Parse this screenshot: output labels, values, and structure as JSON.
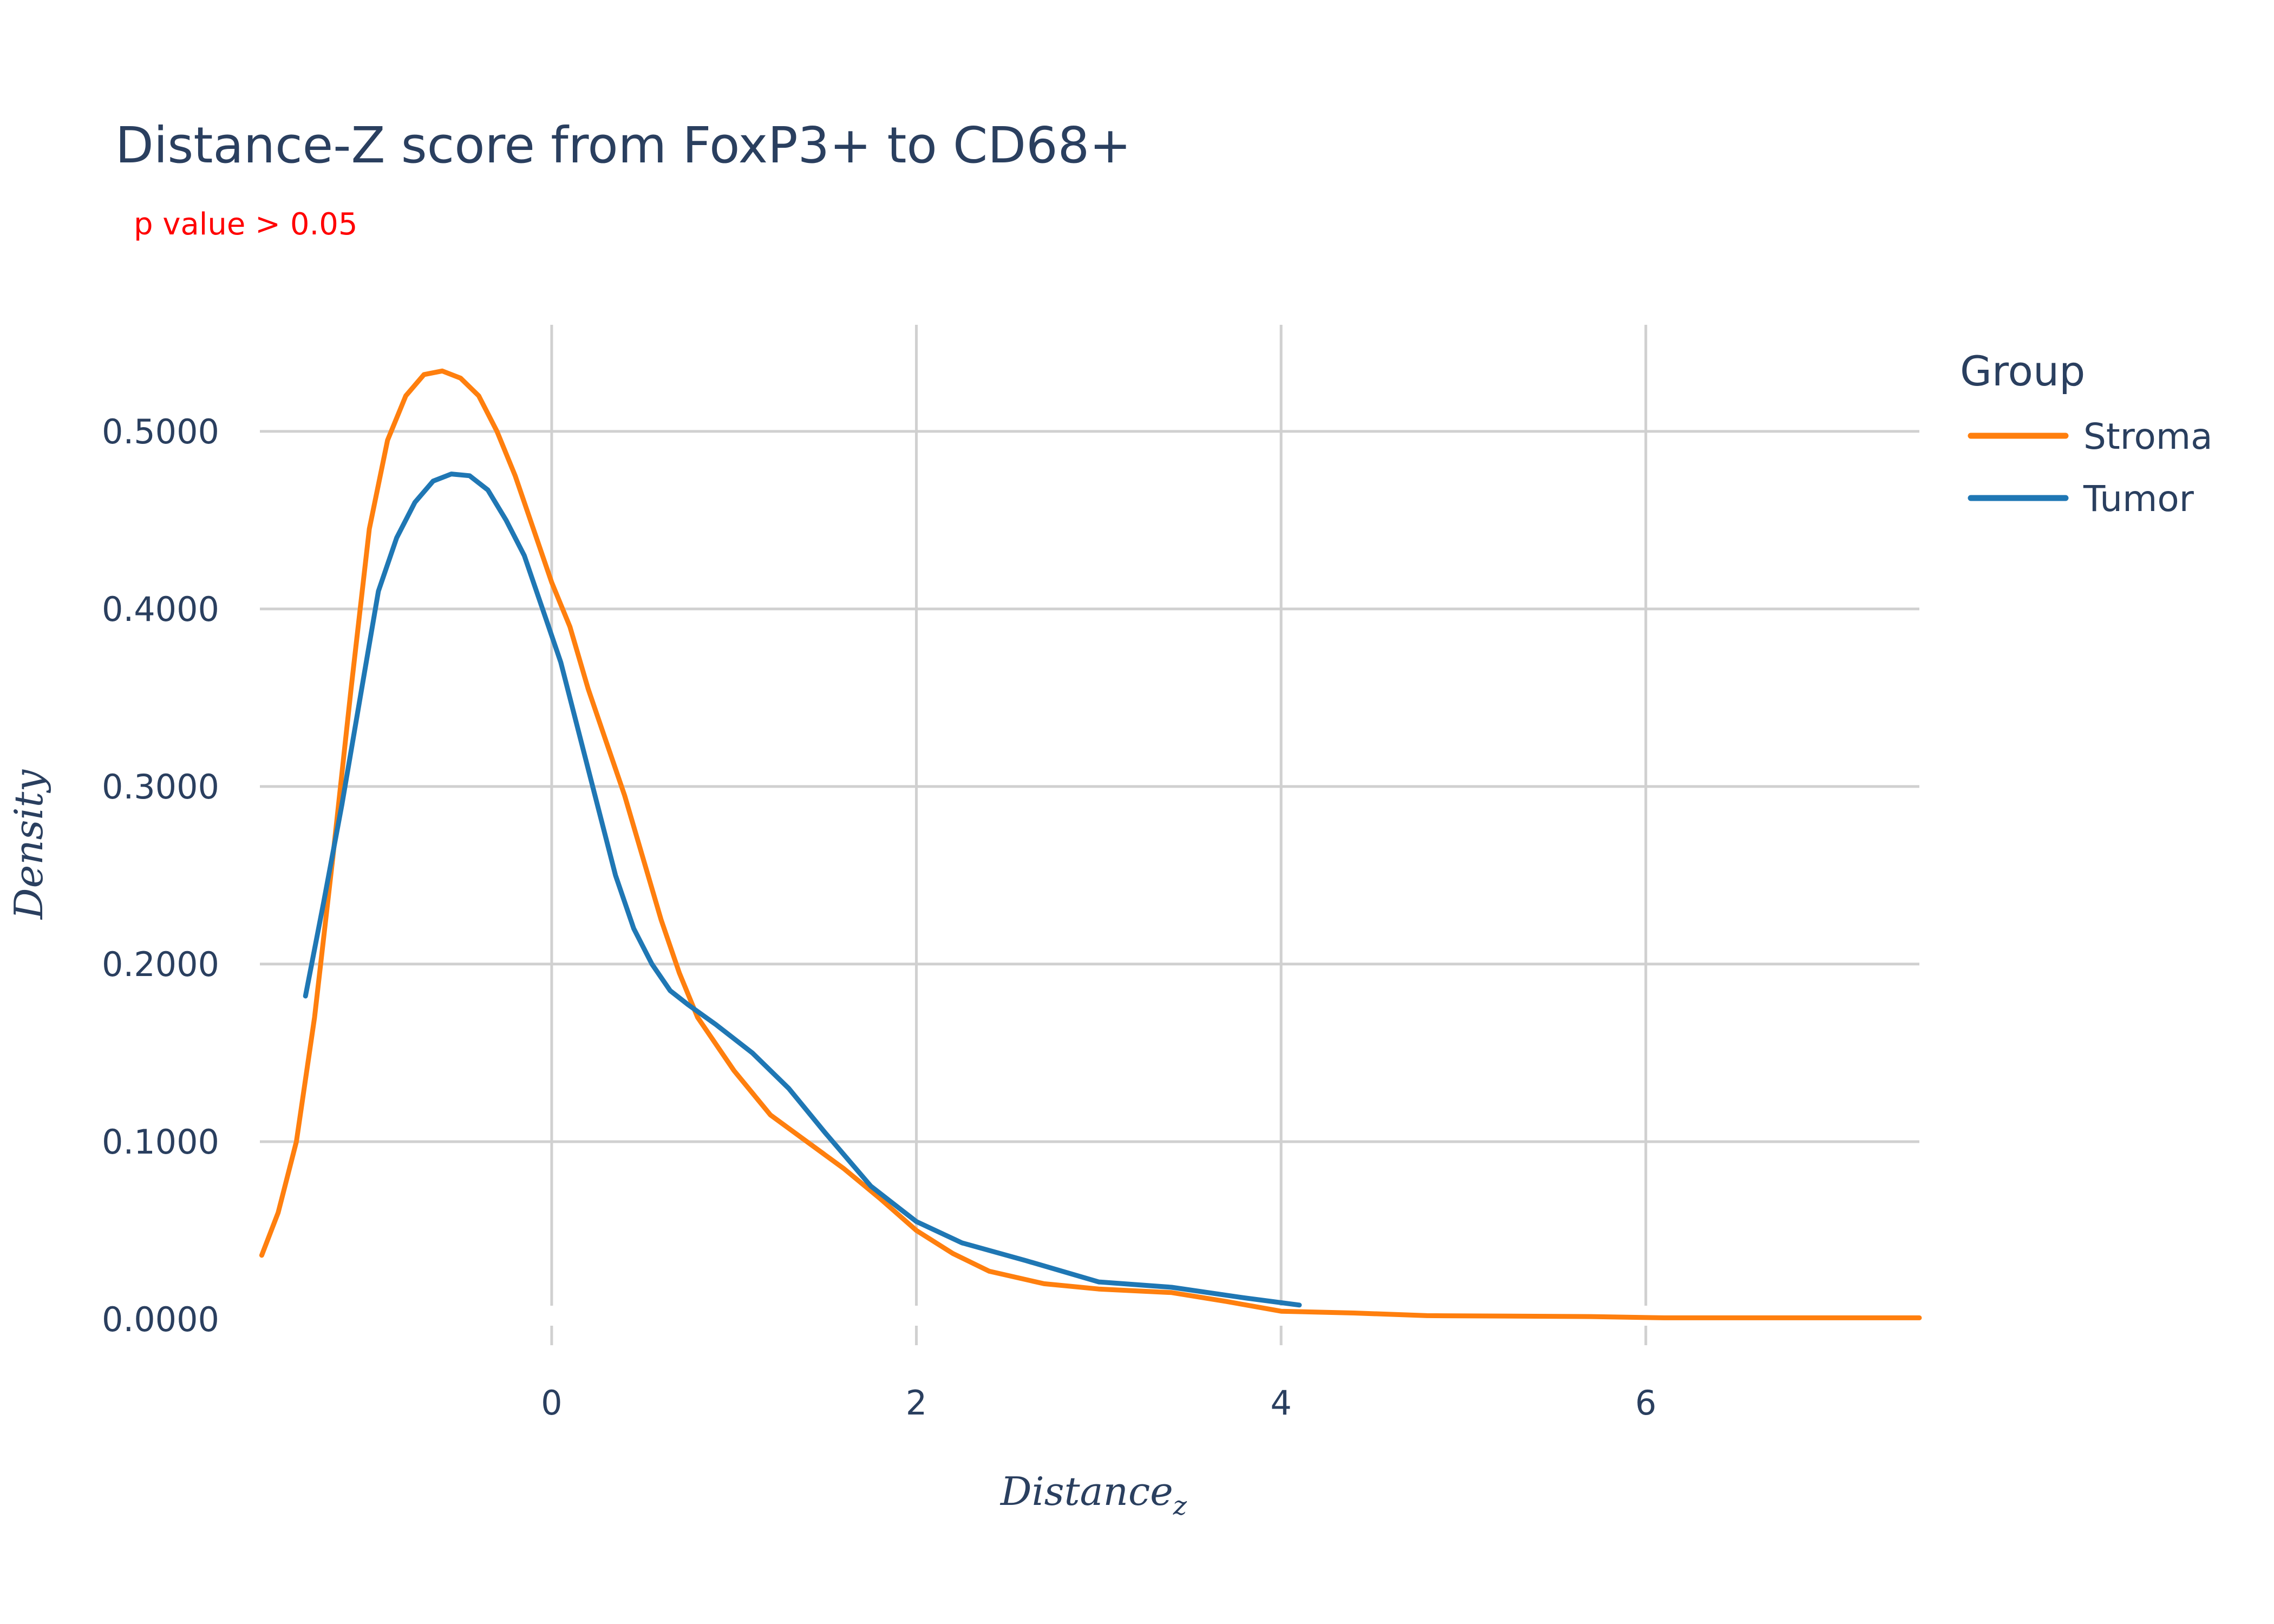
{
  "chart_data": {
    "type": "line",
    "title": "Distance-Z score from FoxP3+ to CD68+",
    "subtitle": "p value > 0.05",
    "xlabel": "Distance",
    "xlabel_sub": "z",
    "ylabel": "Density",
    "xlim": [
      -1.6,
      7.5
    ],
    "ylim": [
      0,
      0.56
    ],
    "xticks": [
      0,
      2,
      4,
      6
    ],
    "yticks": [
      0,
      0.1,
      0.2,
      0.3,
      0.4,
      0.5
    ],
    "ytick_labels": [
      "0.0000",
      "0.1000",
      "0.2000",
      "0.3000",
      "0.4000",
      "0.5000"
    ],
    "grid": true,
    "legend": {
      "title": "Group",
      "position": "top-right"
    },
    "series": [
      {
        "name": "Stroma",
        "color": "#ff7f0e",
        "points": [
          [
            -1.59,
            0.036
          ],
          [
            -1.5,
            0.06
          ],
          [
            -1.4,
            0.1
          ],
          [
            -1.3,
            0.17
          ],
          [
            -1.2,
            0.26
          ],
          [
            -1.1,
            0.355
          ],
          [
            -1.0,
            0.445
          ],
          [
            -0.9,
            0.495
          ],
          [
            -0.8,
            0.52
          ],
          [
            -0.7,
            0.532
          ],
          [
            -0.6,
            0.534
          ],
          [
            -0.5,
            0.53
          ],
          [
            -0.4,
            0.52
          ],
          [
            -0.3,
            0.5
          ],
          [
            -0.2,
            0.475
          ],
          [
            -0.1,
            0.445
          ],
          [
            0.0,
            0.415
          ],
          [
            0.1,
            0.39
          ],
          [
            0.2,
            0.355
          ],
          [
            0.3,
            0.325
          ],
          [
            0.4,
            0.295
          ],
          [
            0.5,
            0.26
          ],
          [
            0.6,
            0.225
          ],
          [
            0.7,
            0.195
          ],
          [
            0.8,
            0.17
          ],
          [
            1.0,
            0.14
          ],
          [
            1.2,
            0.115
          ],
          [
            1.4,
            0.1
          ],
          [
            1.6,
            0.085
          ],
          [
            1.8,
            0.068
          ],
          [
            2.0,
            0.05
          ],
          [
            2.2,
            0.037
          ],
          [
            2.4,
            0.027
          ],
          [
            2.7,
            0.02
          ],
          [
            3.0,
            0.017
          ],
          [
            3.4,
            0.015
          ],
          [
            3.7,
            0.01
          ],
          [
            4.0,
            0.0045
          ],
          [
            4.4,
            0.0035
          ],
          [
            4.8,
            0.002
          ],
          [
            5.2,
            0.0018
          ],
          [
            5.7,
            0.0015
          ],
          [
            6.1,
            0.0008
          ],
          [
            6.6,
            0.0008
          ],
          [
            7.0,
            0.0008
          ],
          [
            7.5,
            0.0008
          ]
        ]
      },
      {
        "name": "Tumor",
        "color": "#1f77b4",
        "points": [
          [
            -1.35,
            0.182
          ],
          [
            -1.25,
            0.235
          ],
          [
            -1.15,
            0.29
          ],
          [
            -1.05,
            0.35
          ],
          [
            -0.95,
            0.41
          ],
          [
            -0.85,
            0.44
          ],
          [
            -0.75,
            0.46
          ],
          [
            -0.65,
            0.472
          ],
          [
            -0.55,
            0.476
          ],
          [
            -0.45,
            0.475
          ],
          [
            -0.35,
            0.467
          ],
          [
            -0.25,
            0.45
          ],
          [
            -0.15,
            0.43
          ],
          [
            -0.05,
            0.4
          ],
          [
            0.05,
            0.37
          ],
          [
            0.15,
            0.33
          ],
          [
            0.25,
            0.29
          ],
          [
            0.35,
            0.25
          ],
          [
            0.45,
            0.22
          ],
          [
            0.55,
            0.2
          ],
          [
            0.65,
            0.185
          ],
          [
            0.75,
            0.177
          ],
          [
            0.9,
            0.166
          ],
          [
            1.1,
            0.15
          ],
          [
            1.3,
            0.13
          ],
          [
            1.5,
            0.105
          ],
          [
            1.75,
            0.075
          ],
          [
            2.0,
            0.055
          ],
          [
            2.25,
            0.043
          ],
          [
            2.6,
            0.033
          ],
          [
            3.0,
            0.021
          ],
          [
            3.4,
            0.018
          ],
          [
            3.8,
            0.012
          ],
          [
            4.1,
            0.008
          ]
        ]
      }
    ]
  }
}
